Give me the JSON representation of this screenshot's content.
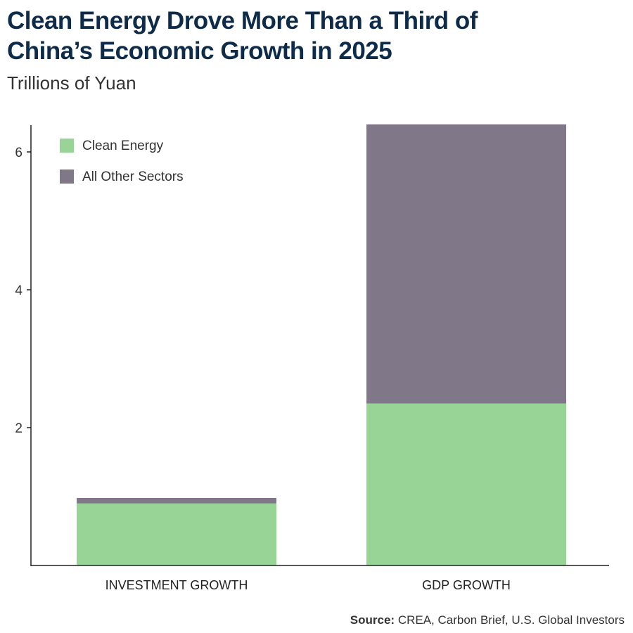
{
  "title_line1": "Clean Energy Drove More Than a Third of",
  "title_line2": "China’s Economic Growth in 2025",
  "subtitle": "Trillions of Yuan",
  "source_label": "Source:",
  "source_text": "CREA, Carbon Brief, U.S. Global Investors",
  "chart_data": {
    "type": "bar",
    "stacked": true,
    "categories": [
      "INVESTMENT GROWTH",
      "GDP GROWTH"
    ],
    "series": [
      {
        "name": "Clean Energy",
        "values": [
          0.9,
          2.35
        ],
        "color": "#98d496"
      },
      {
        "name": "All Other Sectors",
        "values": [
          0.08,
          4.05
        ],
        "color": "#807889"
      }
    ],
    "yticks": [
      2,
      4,
      6
    ],
    "ylim": [
      0,
      6.4
    ],
    "grid": false,
    "legend": "top-left"
  }
}
